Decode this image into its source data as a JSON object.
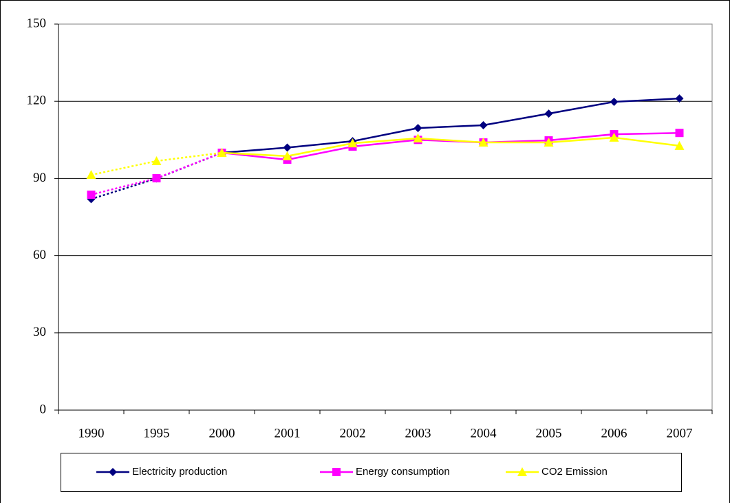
{
  "chart_data": {
    "type": "line",
    "categories": [
      "1990",
      "1995",
      "2000",
      "2001",
      "2002",
      "2003",
      "2004",
      "2005",
      "2006",
      "2007"
    ],
    "series": [
      {
        "name": "Electricity production",
        "color": "#000080",
        "marker": "diamond",
        "values": [
          82,
          90,
          100,
          102,
          104.5,
          109.6,
          110.7,
          115.2,
          119.8,
          121.1
        ]
      },
      {
        "name": "Energy consumption",
        "color": "#ff00ff",
        "marker": "square",
        "values": [
          83.7,
          90.1,
          100,
          97.3,
          102.4,
          105,
          104,
          104.8,
          107.2,
          107.7
        ]
      },
      {
        "name": "CO2 Emission",
        "color": "#ffff00",
        "marker": "triangle",
        "values": [
          91.4,
          96.8,
          100,
          98.7,
          103.7,
          105.6,
          104,
          104,
          105.9,
          102.7
        ]
      }
    ],
    "line_styles": [
      null,
      "dotted",
      "dotted",
      "solid",
      "solid",
      "solid",
      "solid",
      "solid",
      "solid",
      "solid"
    ],
    "ylim": [
      0,
      150
    ],
    "yticks": [
      0,
      30,
      60,
      90,
      120,
      150
    ],
    "grid": true,
    "legend": "bottom"
  }
}
